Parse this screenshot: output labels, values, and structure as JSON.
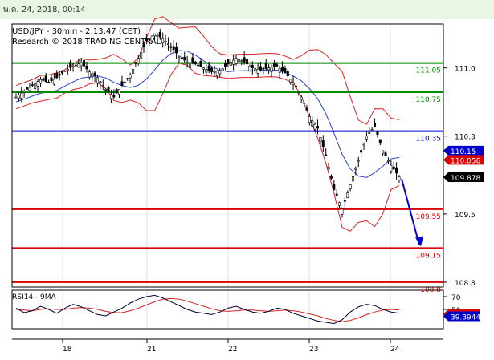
{
  "header": {
    "timestamp": "พ.ค. 24, 2018, 00:14"
  },
  "chart_data": {
    "type": "candlestick",
    "title": "USD/JPY - 30min - 2:13:47 (CET)",
    "subtitle": "Research © 2018 TRADING CENTRAL",
    "ylim": [
      108.75,
      111.45
    ],
    "y_ticks": [
      "111.0",
      "110.3",
      "109.5",
      "108.8"
    ],
    "x_ticks": [
      "18",
      "21",
      "22",
      "23",
      "24"
    ],
    "levels": [
      {
        "label": "111.05",
        "value": 111.05,
        "color": "#008a00"
      },
      {
        "label": "110.75",
        "value": 110.75,
        "color": "#008a00"
      },
      {
        "label": "110.35",
        "value": 110.35,
        "color": "#0000cc"
      },
      {
        "label": "109.55",
        "value": 109.55,
        "color": "#dd0000"
      },
      {
        "label": "109.15",
        "value": 109.15,
        "color": "#dd0000"
      },
      {
        "label": "108.8",
        "value": 108.8,
        "color": "#dd0000"
      }
    ],
    "price_tags": [
      {
        "label": "110.15",
        "value": 110.15,
        "bg": "#0000cc"
      },
      {
        "label": "110.056",
        "value": 110.056,
        "bg": "#dd0000"
      },
      {
        "label": "109.878",
        "value": 109.878,
        "bg": "#000000"
      }
    ],
    "forecast_arrow": {
      "from": 109.86,
      "to": 109.15,
      "color": "#0000cc"
    },
    "price_path": [
      110.7,
      110.76,
      110.82,
      110.88,
      110.85,
      110.9,
      110.97,
      111.02,
      111.05,
      110.96,
      110.9,
      110.78,
      110.7,
      110.82,
      110.93,
      111.1,
      111.28,
      111.35,
      111.3,
      111.22,
      111.12,
      111.06,
      111.04,
      111.0,
      110.96,
      110.97,
      111.04,
      111.1,
      111.06,
      111.0,
      110.98,
      111.0,
      111.02,
      110.95,
      110.85,
      110.7,
      110.5,
      110.38,
      110.1,
      109.75,
      109.55,
      109.8,
      110.05,
      110.3,
      110.4,
      110.15,
      110.0,
      109.88
    ],
    "indicator": {
      "label": "RSI14 - 9MA",
      "ylim": [
        20,
        80
      ],
      "ticks": [
        "70",
        "50"
      ],
      "tags": [
        {
          "label": "42.84",
          "value": 42.84,
          "bg": "#dd0000"
        },
        {
          "label": "39.3944",
          "value": 39.3944,
          "bg": "#0000cc"
        }
      ],
      "rsi": [
        52,
        45,
        48,
        55,
        50,
        44,
        52,
        58,
        54,
        48,
        42,
        40,
        46,
        52,
        60,
        66,
        70,
        72,
        68,
        62,
        56,
        50,
        46,
        44,
        42,
        46,
        52,
        55,
        50,
        46,
        44,
        47,
        52,
        50,
        44,
        40,
        36,
        32,
        30,
        28,
        34,
        46,
        54,
        58,
        56,
        50,
        46,
        44
      ],
      "ma": [
        50,
        49,
        48,
        50,
        51,
        50,
        50,
        52,
        53,
        52,
        50,
        47,
        45,
        45,
        48,
        52,
        57,
        62,
        66,
        67,
        66,
        63,
        59,
        55,
        51,
        48,
        47,
        48,
        49,
        49,
        48,
        47,
        48,
        49,
        48,
        46,
        43,
        40,
        36,
        33,
        31,
        33,
        37,
        42,
        46,
        49,
        50,
        49
      ]
    }
  }
}
